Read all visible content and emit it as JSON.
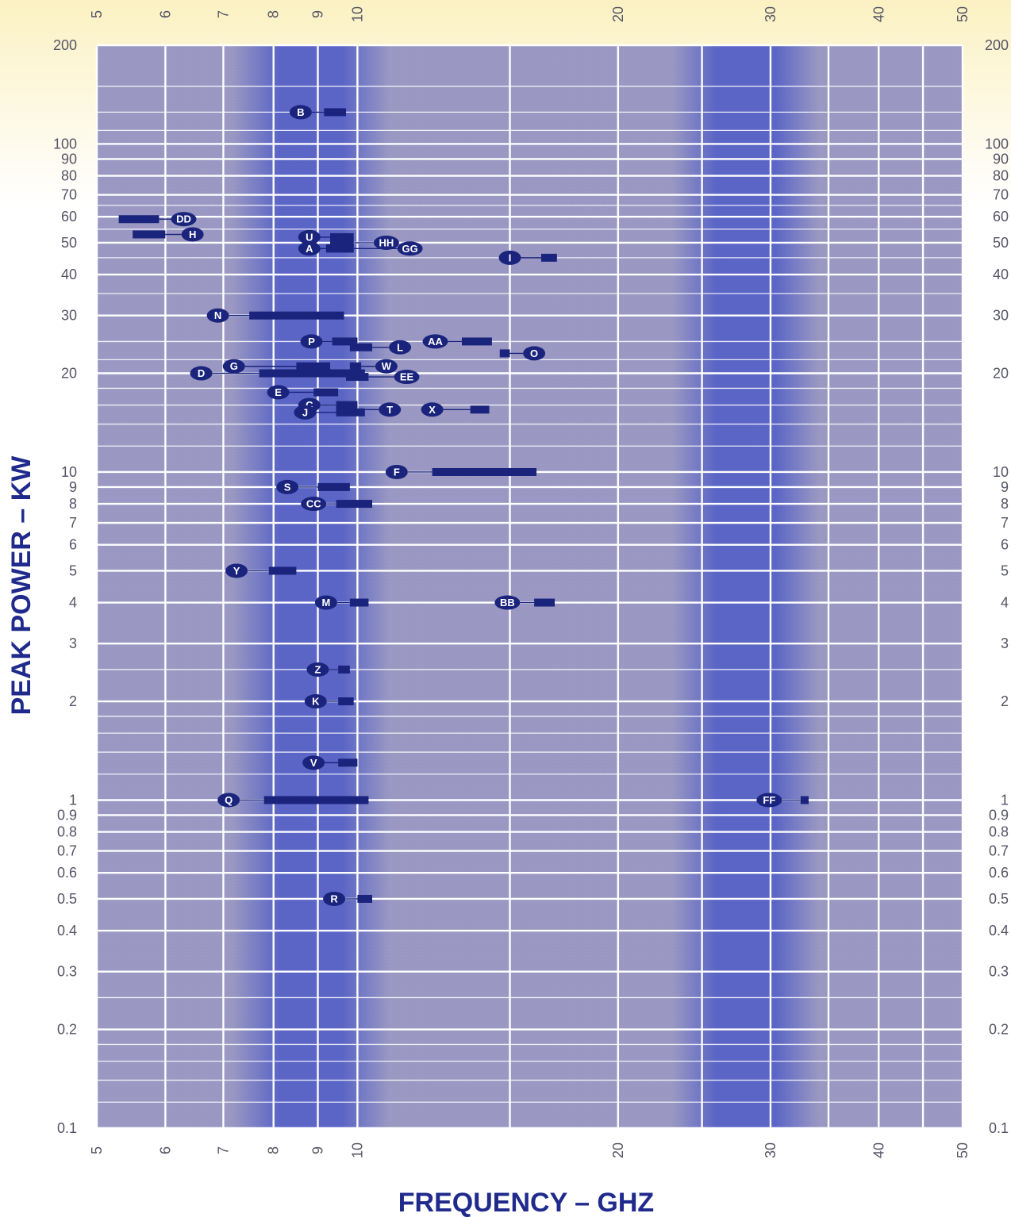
{
  "chart_data": {
    "type": "range",
    "title": "",
    "xlabel": "FREQUENCY – GHZ",
    "ylabel": "PEAK POWER – KW",
    "x_scale": "log",
    "y_scale": "log",
    "xlim": [
      5,
      50
    ],
    "ylim": [
      0.1,
      200
    ],
    "x_ticks": [
      5,
      6,
      7,
      8,
      9,
      10,
      20,
      30,
      40,
      50
    ],
    "x_gridlines": [
      5,
      6,
      7,
      8,
      9,
      10,
      15,
      20,
      25,
      30,
      35,
      40,
      45,
      50
    ],
    "y_ticks": [
      200,
      100,
      90,
      80,
      70,
      60,
      50,
      40,
      30,
      20,
      10,
      9,
      8,
      7,
      6,
      5,
      4,
      3,
      2,
      1,
      0.9,
      0.8,
      0.7,
      0.6,
      0.5,
      0.4,
      0.3,
      0.2,
      0.1
    ],
    "y_tick_labels": [
      "200",
      "100",
      "90",
      "80",
      "70",
      "60",
      "50",
      "40",
      "30",
      "20",
      "10",
      "9",
      "8",
      "7",
      "6",
      "5",
      "4",
      "3",
      "2",
      "1",
      "0.9",
      "0.8",
      "0.7",
      "0.6",
      "0.5",
      "0.4",
      "0.3",
      "0.2",
      "0.1"
    ],
    "y_minor_gridlines": [
      150,
      125,
      110,
      65,
      55,
      45,
      35,
      25,
      22,
      18,
      16,
      14,
      12,
      2.5,
      1.8,
      1.6,
      1.4,
      1.2,
      0.25,
      0.18,
      0.16,
      0.14,
      0.12
    ],
    "bands": [
      {
        "from": 7.8,
        "to": 10,
        "color": "#4f5cc6"
      },
      {
        "from": 25,
        "to": 31.5,
        "color": "#4f5cc6"
      }
    ],
    "colors": {
      "mark": "#1a247d",
      "grid": "#ffffff",
      "plot_base": "#9a98c2"
    },
    "devices": [
      {
        "label": "B",
        "label_x": 8.6,
        "freq_min": 9.15,
        "freq_max": 9.7,
        "power": 125
      },
      {
        "label": "DD",
        "label_x": 6.3,
        "freq_min": 5.3,
        "freq_max": 5.9,
        "power": 59
      },
      {
        "label": "H",
        "label_x": 6.45,
        "freq_min": 5.5,
        "freq_max": 6.0,
        "power": 53
      },
      {
        "label": "U",
        "label_x": 8.8,
        "freq_min": 9.3,
        "freq_max": 9.9,
        "power": 52
      },
      {
        "label": "HH",
        "label_x": 10.8,
        "freq_min": 9.3,
        "freq_max": 9.9,
        "power": 50
      },
      {
        "label": "A",
        "label_x": 8.8,
        "freq_min": 9.2,
        "freq_max": 9.9,
        "power": 48
      },
      {
        "label": "GG",
        "label_x": 11.5,
        "freq_min": 9.2,
        "freq_max": 9.9,
        "power": 48
      },
      {
        "label": "I",
        "label_x": 15.0,
        "freq_min": 16.3,
        "freq_max": 17.0,
        "power": 45
      },
      {
        "label": "N",
        "label_x": 6.9,
        "freq_min": 7.5,
        "freq_max": 9.65,
        "power": 30
      },
      {
        "label": "P",
        "label_x": 8.85,
        "freq_min": 9.35,
        "freq_max": 10.0,
        "power": 25
      },
      {
        "label": "L",
        "label_x": 11.2,
        "freq_min": 9.8,
        "freq_max": 10.4,
        "power": 24
      },
      {
        "label": "AA",
        "label_x": 12.3,
        "freq_min": 13.2,
        "freq_max": 14.3,
        "power": 25
      },
      {
        "label": "O",
        "label_x": 16.0,
        "freq_min": 14.6,
        "freq_max": 15.0,
        "power": 23
      },
      {
        "label": "D",
        "label_x": 6.6,
        "freq_min": 7.7,
        "freq_max": 10.2,
        "power": 20
      },
      {
        "label": "G",
        "label_x": 7.2,
        "freq_min": 8.5,
        "freq_max": 9.3,
        "power": 21
      },
      {
        "label": "W",
        "label_x": 10.8,
        "freq_min": 9.8,
        "freq_max": 10.1,
        "power": 21
      },
      {
        "label": "EE",
        "label_x": 11.4,
        "freq_min": 9.7,
        "freq_max": 10.3,
        "power": 19.5
      },
      {
        "label": "E",
        "label_x": 8.1,
        "freq_min": 8.9,
        "freq_max": 9.5,
        "power": 17.5
      },
      {
        "label": "C",
        "label_x": 8.8,
        "freq_min": 9.45,
        "freq_max": 10.0,
        "power": 16
      },
      {
        "label": "T",
        "label_x": 10.9,
        "freq_min": 9.45,
        "freq_max": 10.0,
        "power": 15.5
      },
      {
        "label": "J",
        "label_x": 8.7,
        "freq_min": 9.45,
        "freq_max": 10.2,
        "power": 15.2
      },
      {
        "label": "X",
        "label_x": 12.2,
        "freq_min": 13.5,
        "freq_max": 14.2,
        "power": 15.5
      },
      {
        "label": "F",
        "label_x": 11.1,
        "freq_min": 12.2,
        "freq_max": 16.1,
        "power": 10
      },
      {
        "label": "S",
        "label_x": 8.3,
        "freq_min": 9.0,
        "freq_max": 9.8,
        "power": 9
      },
      {
        "label": "CC",
        "label_x": 8.9,
        "freq_min": 9.45,
        "freq_max": 10.4,
        "power": 8
      },
      {
        "label": "Y",
        "label_x": 7.25,
        "freq_min": 7.9,
        "freq_max": 8.5,
        "power": 5
      },
      {
        "label": "M",
        "label_x": 9.2,
        "freq_min": 9.8,
        "freq_max": 10.3,
        "power": 4
      },
      {
        "label": "BB",
        "label_x": 14.9,
        "freq_min": 16.0,
        "freq_max": 16.9,
        "power": 4
      },
      {
        "label": "Z",
        "label_x": 9.0,
        "freq_min": 9.5,
        "freq_max": 9.8,
        "power": 2.5
      },
      {
        "label": "K",
        "label_x": 8.95,
        "freq_min": 9.5,
        "freq_max": 9.9,
        "power": 2
      },
      {
        "label": "V",
        "label_x": 8.9,
        "freq_min": 9.5,
        "freq_max": 10.0,
        "power": 1.3
      },
      {
        "label": "Q",
        "label_x": 7.1,
        "freq_min": 7.8,
        "freq_max": 10.3,
        "power": 1
      },
      {
        "label": "FF",
        "label_x": 29.9,
        "freq_min": 32.5,
        "freq_max": 33.2,
        "power": 1
      },
      {
        "label": "R",
        "label_x": 9.4,
        "freq_min": 10.0,
        "freq_max": 10.4,
        "power": 0.5
      }
    ]
  }
}
